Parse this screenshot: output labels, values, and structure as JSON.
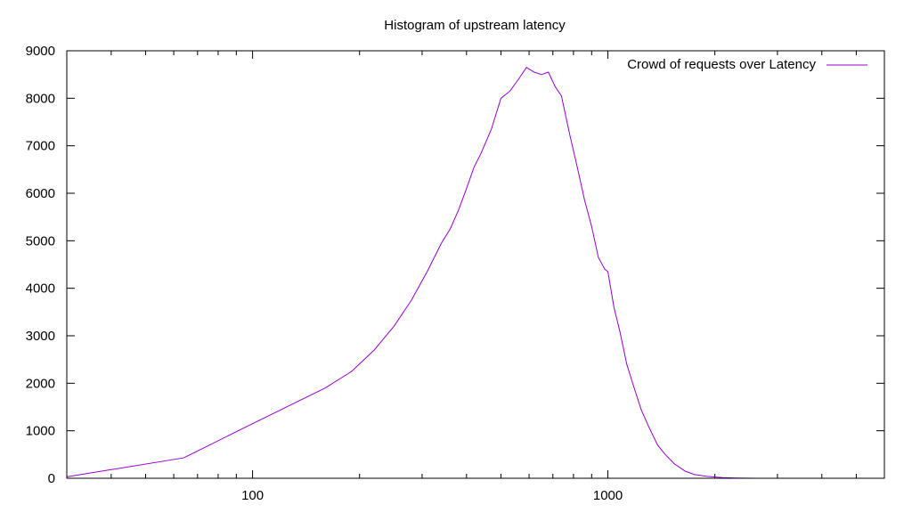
{
  "chart_data": {
    "type": "line",
    "title": "Histogram of upstream latency",
    "xlabel": "",
    "ylabel": "",
    "x_scale": "log",
    "xlim": [
      30,
      6000
    ],
    "ylim": [
      0,
      9000
    ],
    "x_ticks": [
      100,
      1000
    ],
    "x_tick_labels": [
      "100",
      "1000"
    ],
    "y_ticks": [
      0,
      1000,
      2000,
      3000,
      4000,
      5000,
      6000,
      7000,
      8000,
      9000
    ],
    "y_tick_labels": [
      "0",
      "1000",
      "2000",
      "3000",
      "4000",
      "5000",
      "6000",
      "7000",
      "8000",
      "9000"
    ],
    "grid": false,
    "legend_position": "top-right",
    "series": [
      {
        "name": "Crowd of requests over Latency",
        "color": "#9400d3",
        "x": [
          30,
          64,
          100,
          160,
          190,
          220,
          250,
          280,
          310,
          340,
          360,
          380,
          400,
          420,
          440,
          470,
          500,
          530,
          560,
          590,
          620,
          650,
          680,
          710,
          740,
          780,
          820,
          860,
          900,
          940,
          980,
          1000,
          1040,
          1080,
          1130,
          1180,
          1240,
          1300,
          1380,
          1450,
          1540,
          1650,
          1750,
          1900,
          2100,
          2300,
          2600
        ],
        "y": [
          30,
          430,
          1150,
          1900,
          2250,
          2700,
          3200,
          3750,
          4350,
          4950,
          5250,
          5650,
          6100,
          6550,
          6850,
          7350,
          8000,
          8150,
          8400,
          8650,
          8550,
          8500,
          8550,
          8250,
          8050,
          7250,
          6550,
          5850,
          5300,
          4650,
          4400,
          4350,
          3600,
          3100,
          2400,
          1950,
          1450,
          1100,
          700,
          500,
          300,
          150,
          80,
          40,
          15,
          5,
          0
        ]
      }
    ]
  }
}
